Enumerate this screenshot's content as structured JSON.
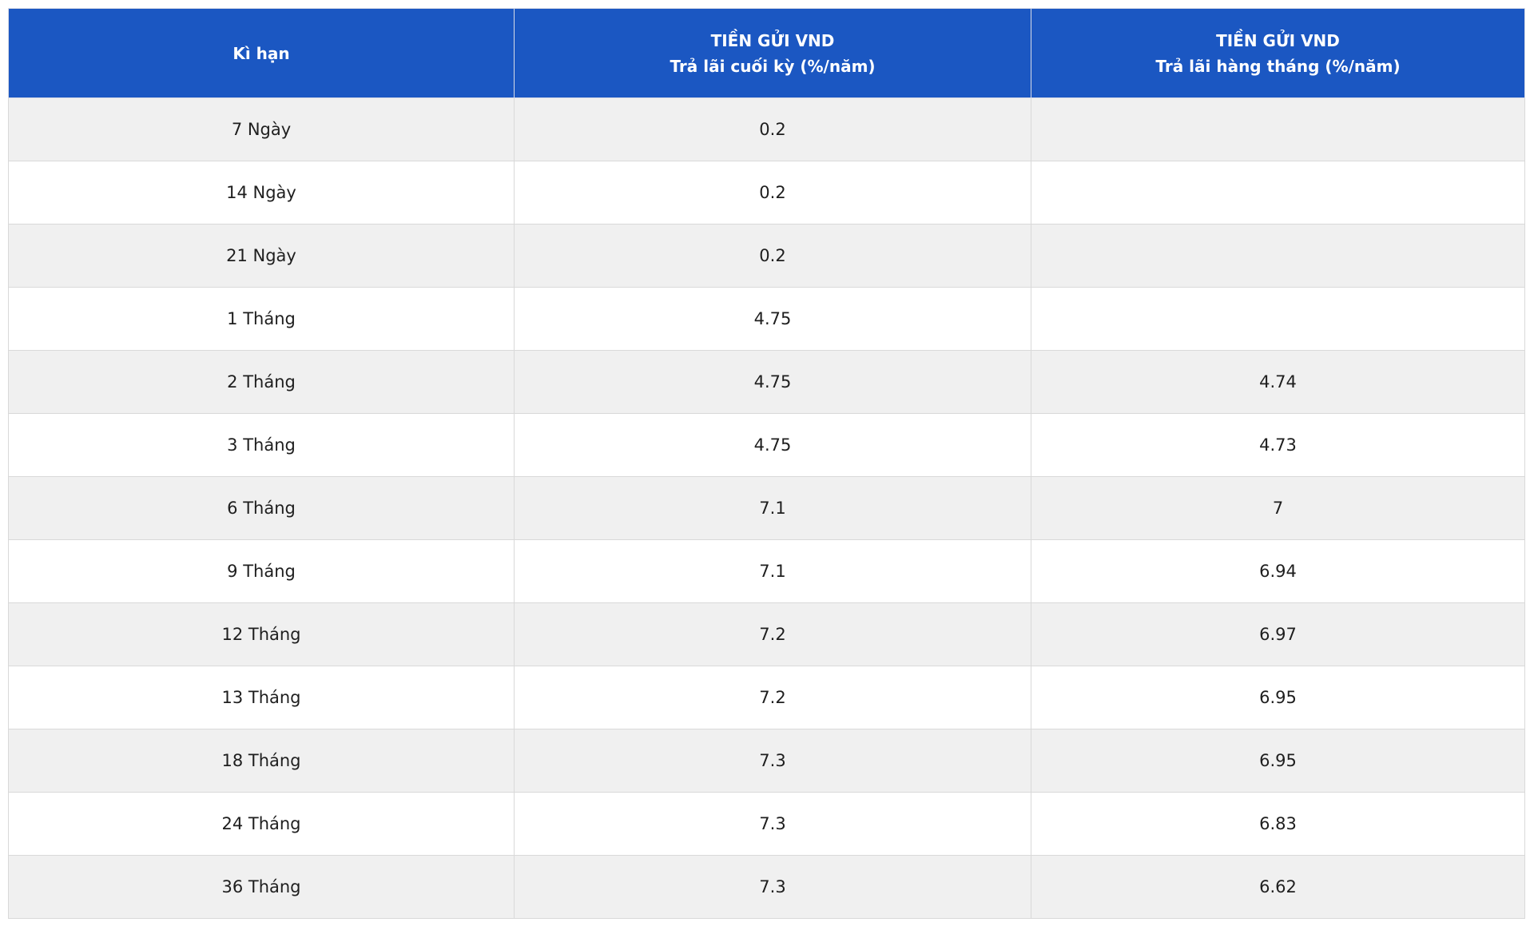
{
  "chart_data": {
    "type": "table",
    "columns": [
      "Kì hạn",
      "TIỀN GỬI VND\nTrả lãi cuối kỳ (%/năm)",
      "TIỀN GỬI VND\nTrả lãi hàng tháng (%/năm)"
    ],
    "rows": [
      [
        "7 Ngày",
        "0.2",
        ""
      ],
      [
        "14 Ngày",
        "0.2",
        ""
      ],
      [
        "21 Ngày",
        "0.2",
        ""
      ],
      [
        "1 Tháng",
        "4.75",
        ""
      ],
      [
        "2 Tháng",
        "4.75",
        "4.74"
      ],
      [
        "3 Tháng",
        "4.75",
        "4.73"
      ],
      [
        "6 Tháng",
        "7.1",
        "7"
      ],
      [
        "9 Tháng",
        "7.1",
        "6.94"
      ],
      [
        "12 Tháng",
        "7.2",
        "6.97"
      ],
      [
        "13 Tháng",
        "7.2",
        "6.95"
      ],
      [
        "18 Tháng",
        "7.3",
        "6.95"
      ],
      [
        "24 Tháng",
        "7.3",
        "6.83"
      ],
      [
        "36 Tháng",
        "7.3",
        "6.62"
      ]
    ]
  },
  "header": {
    "col1": {
      "line1": "Kì hạn"
    },
    "col2": {
      "line1": "TIỀN GỬI VND",
      "line2": "Trả lãi cuối kỳ (%/năm)"
    },
    "col3": {
      "line1": "TIỀN GỬI VND",
      "line2": "Trả lãi hàng tháng (%/năm)"
    }
  },
  "colors": {
    "header_bg": "#1B57C2",
    "header_text": "#FFFFFF",
    "row_alt_bg": "#F0F0F0",
    "row_bg": "#FFFFFF",
    "border": "#D9D9D9",
    "body_text": "#1E1E1E"
  }
}
